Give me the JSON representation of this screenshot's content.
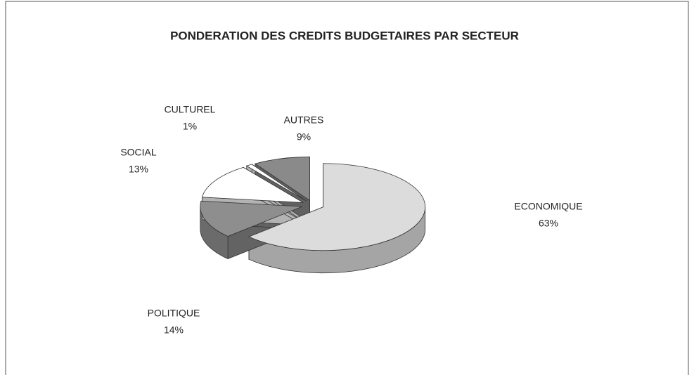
{
  "chart_data": {
    "type": "pie3d",
    "title": "PONDERATION DES CREDITS BUDGETAIRES PAR SECTEUR",
    "categories": [
      "ECONOMIQUE",
      "POLITIQUE",
      "SOCIAL",
      "CULTUREL",
      "AUTRES"
    ],
    "values": [
      63,
      14,
      13,
      1,
      9
    ],
    "value_labels": [
      "63%",
      "14%",
      "13%",
      "1%",
      "9%"
    ],
    "colors": [
      "#dcdcdc",
      "#8e8e8e",
      "#ffffff",
      "#ffffff",
      "#8a8a8a"
    ]
  }
}
